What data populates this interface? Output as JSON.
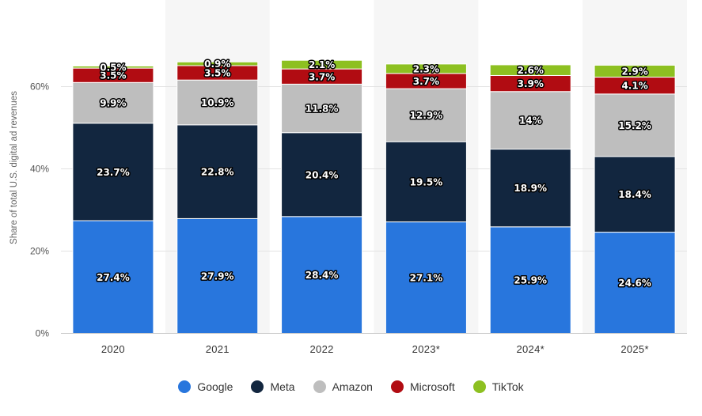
{
  "chart_data": {
    "type": "bar",
    "stacked": true,
    "title": "",
    "xlabel": "",
    "ylabel": "Share of total U.S. digital ad revenues",
    "categories": [
      "2020",
      "2021",
      "2022",
      "2023*",
      "2024*",
      "2025*"
    ],
    "ylim": [
      0,
      80
    ],
    "yticks": [
      0,
      20,
      40,
      60
    ],
    "ytick_labels": [
      "0%",
      "20%",
      "40%",
      "60%"
    ],
    "series": [
      {
        "name": "Google",
        "color": "#2876dd",
        "values": [
          27.4,
          27.9,
          28.4,
          27.1,
          25.9,
          24.6
        ],
        "labels": [
          "27.4%",
          "27.9%",
          "28.4%",
          "27.1%",
          "25.9%",
          "24.6%"
        ]
      },
      {
        "name": "Meta",
        "color": "#12263f",
        "values": [
          23.7,
          22.8,
          20.4,
          19.5,
          18.9,
          18.4
        ],
        "labels": [
          "23.7%",
          "22.8%",
          "20.4%",
          "19.5%",
          "18.9%",
          "18.4%"
        ]
      },
      {
        "name": "Amazon",
        "color": "#bebebe",
        "values": [
          9.9,
          10.9,
          11.8,
          12.9,
          14,
          15.2
        ],
        "labels": [
          "9.9%",
          "10.9%",
          "11.8%",
          "12.9%",
          "14%",
          "15.2%"
        ]
      },
      {
        "name": "Microsoft",
        "color": "#b10c12",
        "values": [
          3.5,
          3.5,
          3.7,
          3.7,
          3.9,
          4.1
        ],
        "labels": [
          "3.5%",
          "3.5%",
          "3.7%",
          "3.7%",
          "3.9%",
          "4.1%"
        ]
      },
      {
        "name": "TikTok",
        "color": "#8dc021",
        "values": [
          0.5,
          0.9,
          2.1,
          2.3,
          2.6,
          2.9
        ],
        "labels": [
          "0.5%",
          "0.9%",
          "2.1%",
          "2.3%",
          "2.6%",
          "2.9%"
        ]
      }
    ],
    "grid": true,
    "legend_position": "bottom-center"
  }
}
